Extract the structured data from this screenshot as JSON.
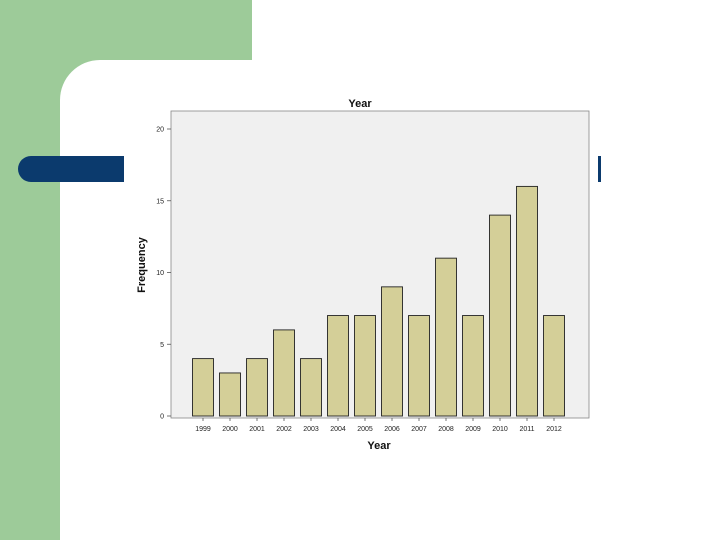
{
  "colors": {
    "slide_green": "#9dcb99",
    "slide_navy": "#0b3a6d",
    "plot_bg": "#f0f0f0",
    "bar_fill": "#d4cf98",
    "bar_stroke": "#222222"
  },
  "chart_data": {
    "type": "bar",
    "title": "Year",
    "xlabel": "Year",
    "ylabel": "Frequency",
    "categories": [
      "1999",
      "2000",
      "2001",
      "2002",
      "2003",
      "2004",
      "2005",
      "2006",
      "2007",
      "2008",
      "2009",
      "2010",
      "2011",
      "2012"
    ],
    "values": [
      4,
      3,
      4,
      6,
      4,
      7,
      7,
      9,
      7,
      11,
      7,
      14,
      16,
      7
    ],
    "ylim": [
      0,
      20
    ],
    "yticks": [
      0,
      5,
      10,
      15,
      20
    ],
    "grid": false,
    "legend": "none"
  }
}
